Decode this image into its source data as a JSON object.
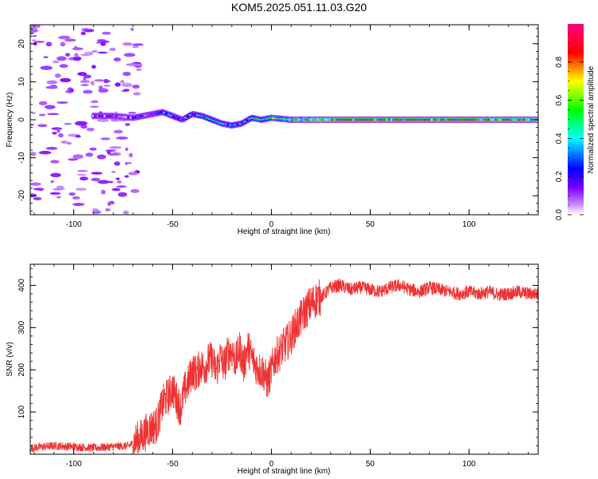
{
  "title": "KOM5.2025.051.11.03.G20",
  "colorbar": {
    "label": "Normalized spectral amplitude",
    "ticks": [
      "0.0",
      "0.2",
      "0.4",
      "0.6",
      "0.8"
    ],
    "tick_values": [
      0.0,
      0.2,
      0.4,
      0.6,
      0.8
    ],
    "range": [
      0,
      1
    ],
    "colors": [
      "#ffffff",
      "#c080ff",
      "#8000ff",
      "#0000ff",
      "#00ffff",
      "#00ff00",
      "#ffff00",
      "#ff0000",
      "#ff0080"
    ]
  },
  "chart_data": [
    {
      "type": "heatmap",
      "xlabel": "Height of straight line (km)",
      "ylabel": "Frequency (Hz)",
      "xlim": [
        -122,
        135
      ],
      "ylim": [
        -25,
        25
      ],
      "xticks": [
        -100,
        -50,
        0,
        50,
        100
      ],
      "yticks": [
        -20,
        -10,
        0,
        10,
        20
      ],
      "ridge": {
        "x": [
          -90,
          -80,
          -70,
          -60,
          -55,
          -50,
          -45,
          -40,
          -35,
          -30,
          -25,
          -20,
          -15,
          -10,
          -5,
          0,
          10,
          20,
          30,
          40,
          60,
          80,
          100,
          120,
          135
        ],
        "freq": [
          1,
          1,
          0.5,
          1.5,
          2,
          1,
          0,
          1.5,
          1,
          0,
          -1,
          -1.5,
          -1,
          0.5,
          0,
          0.5,
          0,
          0,
          0,
          0,
          0,
          0,
          0,
          0,
          0
        ],
        "amplitude": [
          0.1,
          0.12,
          0.15,
          0.25,
          0.3,
          0.35,
          0.3,
          0.35,
          0.4,
          0.35,
          0.3,
          0.4,
          0.35,
          0.4,
          0.45,
          0.5,
          0.6,
          0.7,
          0.85,
          0.9,
          0.9,
          0.85,
          0.9,
          0.8,
          0.75
        ]
      }
    },
    {
      "type": "line",
      "xlabel": "Height of straight line (km)",
      "ylabel": "SNR (v/v)",
      "xlim": [
        -122,
        135
      ],
      "ylim": [
        0,
        450
      ],
      "xticks": [
        -100,
        -50,
        0,
        50,
        100
      ],
      "yticks": [
        100,
        200,
        300,
        400
      ],
      "line_color": "#ee3333",
      "series": [
        {
          "x": [
            -122,
            -110,
            -100,
            -90,
            -80,
            -72,
            -66,
            -62,
            -58,
            -55,
            -52,
            -50,
            -48,
            -46,
            -44,
            -42,
            -40,
            -38,
            -36,
            -34,
            -32,
            -30,
            -28,
            -26,
            -24,
            -22,
            -20,
            -18,
            -16,
            -14,
            -12,
            -10,
            -8,
            -6,
            -4,
            -2,
            0,
            2,
            4,
            6,
            8,
            10,
            12,
            14,
            16,
            18,
            20,
            22,
            24,
            26,
            28,
            30,
            35,
            40,
            45,
            50,
            55,
            60,
            65,
            70,
            75,
            80,
            85,
            90,
            95,
            100,
            105,
            110,
            115,
            120,
            125,
            130,
            135
          ],
          "values": [
            15,
            20,
            18,
            15,
            18,
            20,
            40,
            60,
            70,
            120,
            140,
            155,
            130,
            110,
            150,
            170,
            200,
            190,
            210,
            205,
            220,
            225,
            195,
            230,
            210,
            240,
            245,
            220,
            250,
            210,
            255,
            230,
            210,
            200,
            195,
            170,
            200,
            230,
            240,
            255,
            265,
            280,
            300,
            315,
            330,
            345,
            355,
            365,
            370,
            375,
            385,
            395,
            400,
            390,
            395,
            390,
            385,
            395,
            400,
            390,
            385,
            395,
            390,
            385,
            380,
            385,
            380,
            385,
            378,
            380,
            385,
            380,
            380
          ]
        }
      ]
    }
  ]
}
